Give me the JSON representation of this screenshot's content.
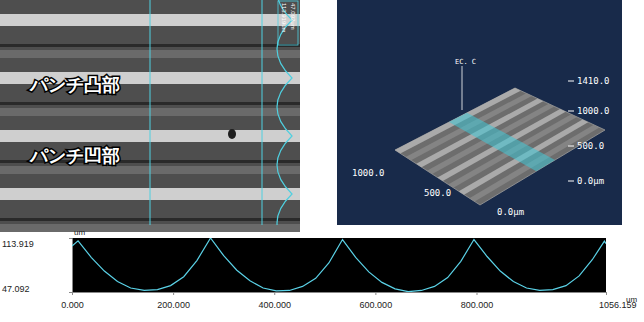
{
  "chart_data": {
    "type": "line",
    "x_label": "um",
    "y_label": "um",
    "x": [
      0,
      12,
      38,
      64,
      90,
      116,
      143,
      169,
      195,
      221,
      247,
      274,
      300,
      326,
      352,
      378,
      404,
      430,
      456,
      482,
      508,
      535,
      561,
      587,
      613,
      639,
      665,
      691,
      717,
      743,
      769,
      795,
      821,
      847,
      873,
      899,
      925,
      951,
      977,
      1003,
      1029,
      1053,
      1056.159
    ],
    "values": [
      104,
      110.5,
      90,
      73,
      60,
      52,
      49,
      50,
      55,
      66,
      86,
      113.9,
      92,
      74,
      61,
      52,
      48.5,
      49,
      54,
      64,
      83,
      112,
      90,
      72,
      59,
      51,
      47.5,
      49,
      54,
      65,
      85,
      112,
      91,
      73,
      60,
      52,
      49,
      50,
      55,
      67,
      87,
      110,
      107
    ],
    "color": "#5ad1e6",
    "xlim": [
      0,
      1056.159
    ],
    "ylim": [
      47.092,
      113.919
    ],
    "xticks": [
      {
        "value": 0,
        "label": "0.000"
      },
      {
        "value": 200,
        "label": "200.000"
      },
      {
        "value": 400,
        "label": "400.000"
      },
      {
        "value": 600,
        "label": "600.000"
      },
      {
        "value": 800,
        "label": "800.000"
      },
      1056.159
    ],
    "yticks": [
      47.092,
      113.919
    ],
    "grid": false
  },
  "photo": {
    "labels": [
      "パンチ凸部",
      "パンチ凹部"
    ],
    "scale_labels": [
      "113.919um",
      "47.092um"
    ]
  },
  "surface_view": {
    "marker_label": "EC. C",
    "z_ticks": [
      "1410.0",
      "1000.0",
      "500.0",
      "0.0μm"
    ],
    "x_ticks": [
      "1000.0",
      "500.0",
      "0.0μm"
    ]
  }
}
